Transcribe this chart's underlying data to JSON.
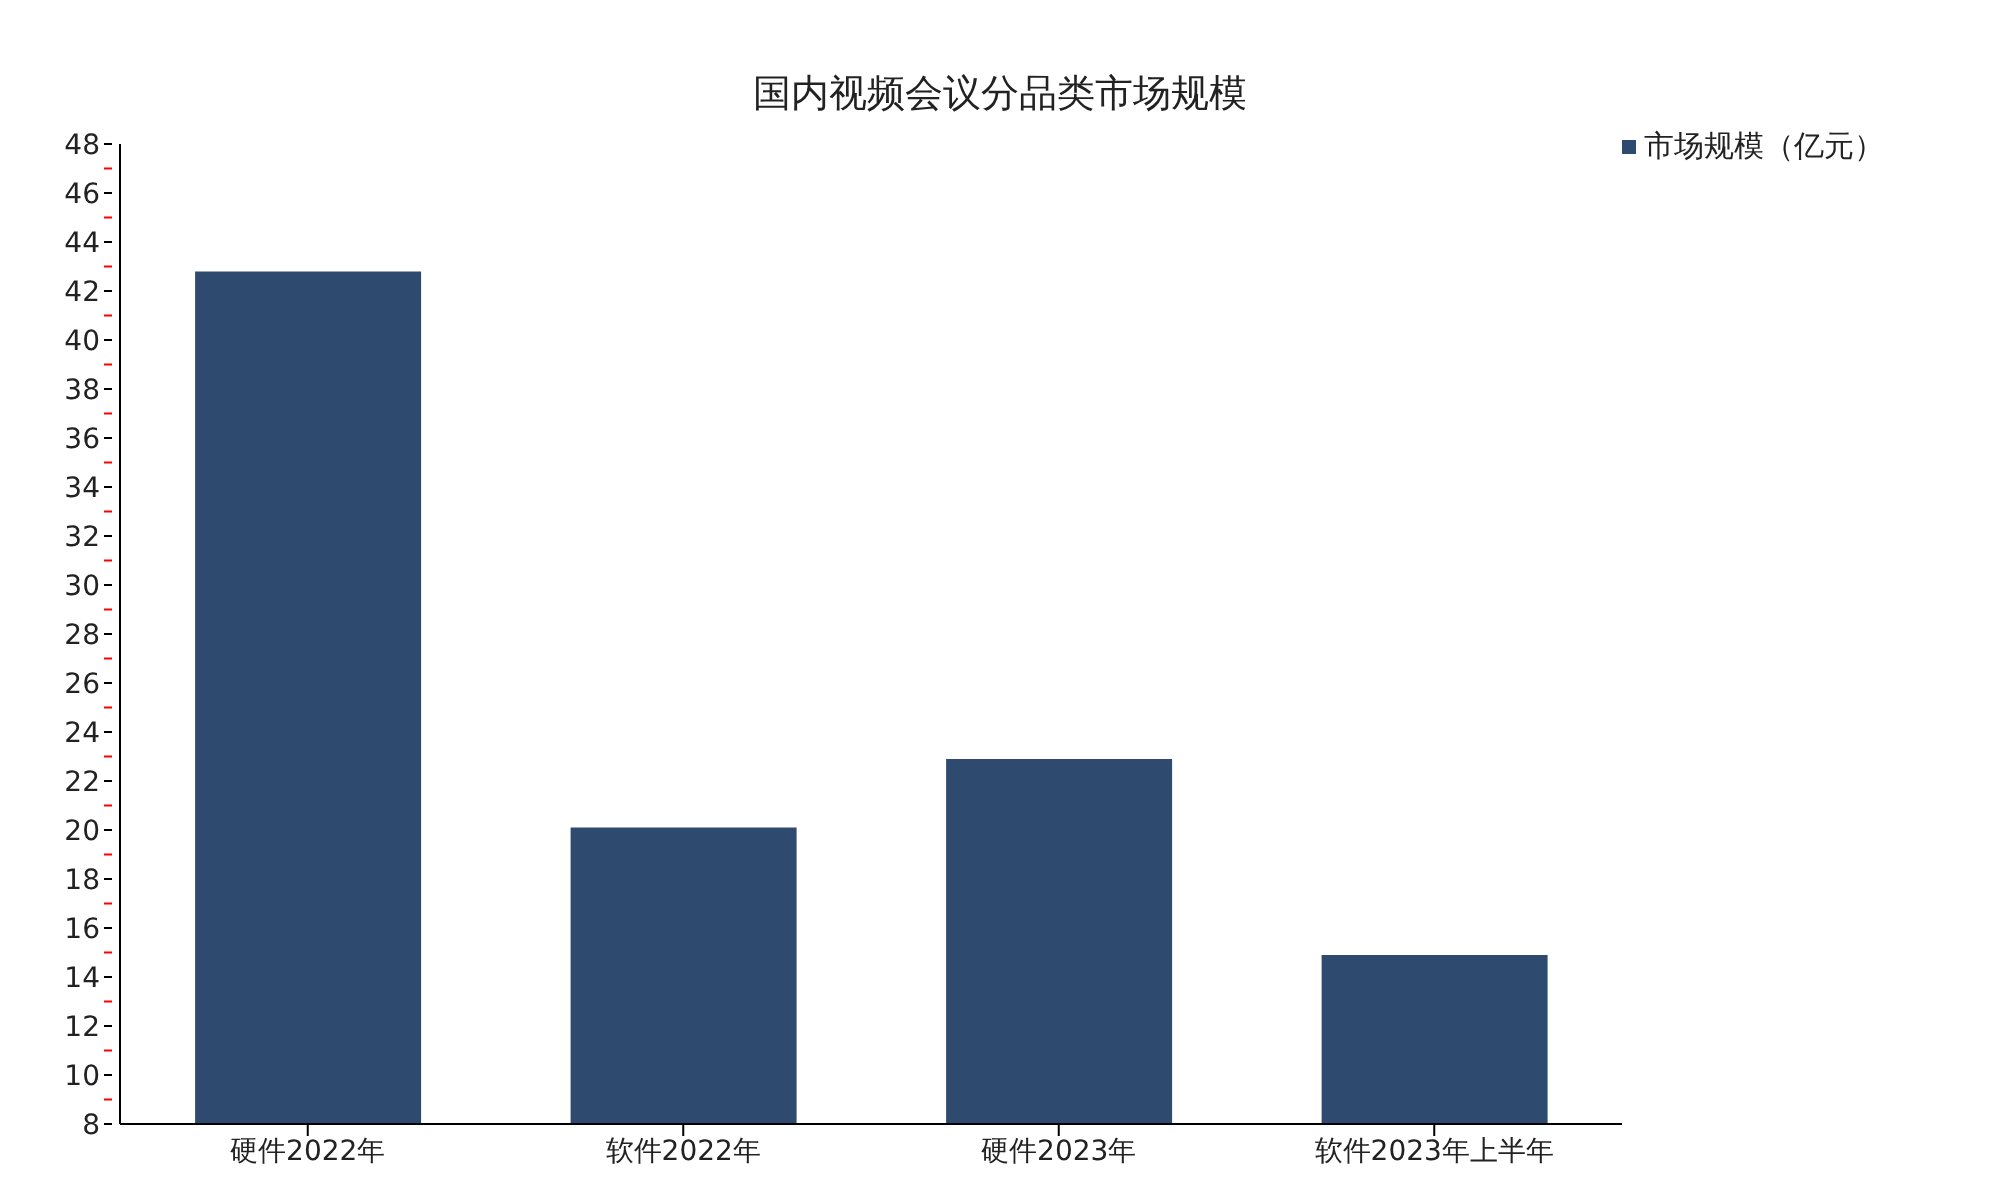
{
  "chart_data": {
    "type": "bar",
    "title": "国内视频会议分品类市场规模",
    "categories": [
      "硬件2022年",
      "软件2022年",
      "硬件2023年",
      "软件2023年上半年"
    ],
    "series": [
      {
        "name": "市场规模（亿元）",
        "color": "#2e4a6e",
        "values": [
          42.8,
          20.1,
          22.9,
          14.9
        ]
      }
    ],
    "ylim": [
      8,
      48
    ],
    "yticks": [
      8,
      {
        "value": 9,
        "label": null
      },
      10,
      {
        "value": 11,
        "label": null
      },
      12,
      {
        "value": 13,
        "label": null
      },
      14,
      {
        "value": 15,
        "label": null
      },
      16,
      {
        "value": 17,
        "label": null
      },
      18,
      {
        "value": 19,
        "label": null
      },
      20,
      {
        "value": 21,
        "label": null
      },
      22,
      {
        "value": 23,
        "label": null
      },
      24,
      {
        "value": 25,
        "label": null
      },
      26,
      {
        "value": 27,
        "label": null
      },
      28,
      {
        "value": 29,
        "label": null
      },
      30,
      {
        "value": 31,
        "label": null
      },
      32,
      {
        "value": 33,
        "label": null
      },
      34,
      {
        "value": 35,
        "label": null
      },
      36,
      {
        "value": 37,
        "label": null
      },
      38,
      {
        "value": 39,
        "label": null
      },
      40,
      {
        "value": 41,
        "label": null
      },
      42,
      {
        "value": 43,
        "label": null
      },
      44,
      {
        "value": 45,
        "label": null
      },
      46,
      {
        "value": 47,
        "label": null
      },
      48
    ],
    "grid": false,
    "legend": "top right"
  }
}
